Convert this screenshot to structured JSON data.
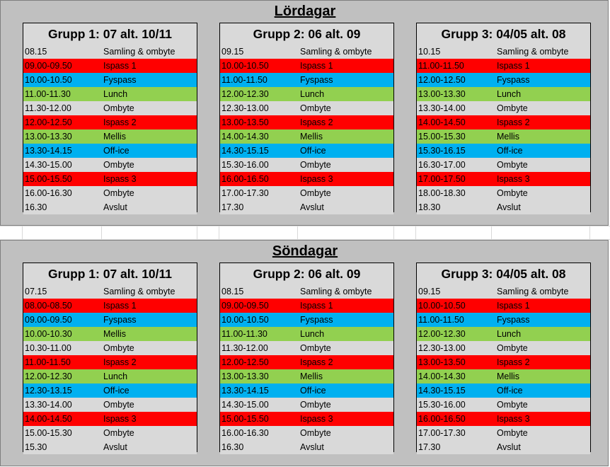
{
  "colors": {
    "ispass": "#ff0000",
    "fyspass": "#00b0f0",
    "meal": "#92d050",
    "plain": "#d9d9d9",
    "panel": "#c0c0c0"
  },
  "sections": [
    {
      "title": "Lördagar",
      "groups": [
        {
          "title": "Grupp 1: 07 alt. 10/11",
          "rows": [
            {
              "time": "08.15",
              "activity": "Samling & ombyte",
              "kind": "plain"
            },
            {
              "time": "09.00-09.50",
              "activity": "Ispass 1",
              "kind": "ice"
            },
            {
              "time": "10.00-10.50",
              "activity": "Fyspass",
              "kind": "fys"
            },
            {
              "time": "11.00-11.30",
              "activity": "Lunch",
              "kind": "food"
            },
            {
              "time": "11.30-12.00",
              "activity": "Ombyte",
              "kind": "plain"
            },
            {
              "time": "12.00-12.50",
              "activity": "Ispass 2",
              "kind": "ice"
            },
            {
              "time": "13.00-13.30",
              "activity": "Mellis",
              "kind": "food"
            },
            {
              "time": "13.30-14.15",
              "activity": "Off-ice",
              "kind": "fys"
            },
            {
              "time": "14.30-15.00",
              "activity": "Ombyte",
              "kind": "plain"
            },
            {
              "time": "15.00-15.50",
              "activity": "Ispass 3",
              "kind": "ice"
            },
            {
              "time": "16.00-16.30",
              "activity": "Ombyte",
              "kind": "plain"
            },
            {
              "time": "16.30",
              "activity": "Avslut",
              "kind": "plain"
            }
          ]
        },
        {
          "title": "Grupp 2: 06 alt. 09",
          "rows": [
            {
              "time": "09.15",
              "activity": "Samling & ombyte",
              "kind": "plain"
            },
            {
              "time": "10.00-10.50",
              "activity": "Ispass 1",
              "kind": "ice"
            },
            {
              "time": "11.00-11.50",
              "activity": "Fyspass",
              "kind": "fys"
            },
            {
              "time": "12.00-12.30",
              "activity": "Lunch",
              "kind": "food"
            },
            {
              "time": "12.30-13.00",
              "activity": "Ombyte",
              "kind": "plain"
            },
            {
              "time": "13.00-13.50",
              "activity": "Ispass 2",
              "kind": "ice"
            },
            {
              "time": "14.00-14.30",
              "activity": "Mellis",
              "kind": "food"
            },
            {
              "time": "14.30-15.15",
              "activity": "Off-ice",
              "kind": "fys"
            },
            {
              "time": "15.30-16.00",
              "activity": "Ombyte",
              "kind": "plain"
            },
            {
              "time": "16.00-16.50",
              "activity": "Ispass 3",
              "kind": "ice"
            },
            {
              "time": "17.00-17.30",
              "activity": "Ombyte",
              "kind": "plain"
            },
            {
              "time": "17.30",
              "activity": "Avslut",
              "kind": "plain"
            }
          ]
        },
        {
          "title": "Grupp 3: 04/05 alt. 08",
          "rows": [
            {
              "time": "10.15",
              "activity": "Samling & ombyte",
              "kind": "plain"
            },
            {
              "time": "11.00-11.50",
              "activity": "Ispass 1",
              "kind": "ice"
            },
            {
              "time": "12.00-12.50",
              "activity": "Fyspass",
              "kind": "fys"
            },
            {
              "time": "13.00-13.30",
              "activity": "Lunch",
              "kind": "food"
            },
            {
              "time": "13.30-14.00",
              "activity": "Ombyte",
              "kind": "plain"
            },
            {
              "time": "14.00-14.50",
              "activity": "Ispass 2",
              "kind": "ice"
            },
            {
              "time": "15.00-15.30",
              "activity": "Mellis",
              "kind": "food"
            },
            {
              "time": "15.30-16.15",
              "activity": "Off-ice",
              "kind": "fys"
            },
            {
              "time": "16.30-17.00",
              "activity": "Ombyte",
              "kind": "plain"
            },
            {
              "time": "17.00-17.50",
              "activity": "Ispass 3",
              "kind": "ice"
            },
            {
              "time": "18.00-18.30",
              "activity": "Ombyte",
              "kind": "plain"
            },
            {
              "time": "18.30",
              "activity": "Avslut",
              "kind": "plain"
            }
          ]
        }
      ]
    },
    {
      "title": "Söndagar",
      "groups": [
        {
          "title": "Grupp 1: 07 alt. 10/11",
          "rows": [
            {
              "time": "07.15",
              "activity": "Samling & ombyte",
              "kind": "plain"
            },
            {
              "time": "08.00-08.50",
              "activity": "Ispass 1",
              "kind": "ice"
            },
            {
              "time": "09.00-09.50",
              "activity": "Fyspass",
              "kind": "fys"
            },
            {
              "time": "10.00-10.30",
              "activity": "Mellis",
              "kind": "food"
            },
            {
              "time": "10.30-11.00",
              "activity": "Ombyte",
              "kind": "plain"
            },
            {
              "time": "11.00-11.50",
              "activity": "Ispass 2",
              "kind": "ice"
            },
            {
              "time": "12.00-12.30",
              "activity": "Lunch",
              "kind": "food"
            },
            {
              "time": "12.30-13.15",
              "activity": "Off-ice",
              "kind": "fys"
            },
            {
              "time": "13.30-14.00",
              "activity": "Ombyte",
              "kind": "plain"
            },
            {
              "time": "14.00-14.50",
              "activity": "Ispass 3",
              "kind": "ice"
            },
            {
              "time": "15.00-15.30",
              "activity": "Ombyte",
              "kind": "plain"
            },
            {
              "time": "15.30",
              "activity": "Avslut",
              "kind": "plain"
            }
          ]
        },
        {
          "title": "Grupp 2: 06 alt. 09",
          "rows": [
            {
              "time": "08.15",
              "activity": "Samling & ombyte",
              "kind": "plain"
            },
            {
              "time": "09.00-09.50",
              "activity": "Ispass 1",
              "kind": "ice"
            },
            {
              "time": "10.00-10.50",
              "activity": "Fyspass",
              "kind": "fys"
            },
            {
              "time": "11.00-11.30",
              "activity": "Lunch",
              "kind": "food"
            },
            {
              "time": "11.30-12.00",
              "activity": "Ombyte",
              "kind": "plain"
            },
            {
              "time": "12.00-12.50",
              "activity": "Ispass 2",
              "kind": "ice"
            },
            {
              "time": "13.00-13.30",
              "activity": "Mellis",
              "kind": "food"
            },
            {
              "time": "13.30-14.15",
              "activity": "Off-ice",
              "kind": "fys"
            },
            {
              "time": "14.30-15.00",
              "activity": "Ombyte",
              "kind": "plain"
            },
            {
              "time": "15.00-15.50",
              "activity": "Ispass 3",
              "kind": "ice"
            },
            {
              "time": "16.00-16.30",
              "activity": "Ombyte",
              "kind": "plain"
            },
            {
              "time": "16.30",
              "activity": "Avslut",
              "kind": "plain"
            }
          ]
        },
        {
          "title": "Grupp 3: 04/05 alt. 08",
          "rows": [
            {
              "time": "09.15",
              "activity": "Samling & ombyte",
              "kind": "plain"
            },
            {
              "time": "10.00-10.50",
              "activity": "Ispass 1",
              "kind": "ice"
            },
            {
              "time": "11.00-11.50",
              "activity": "Fyspass",
              "kind": "fys"
            },
            {
              "time": "12.00-12.30",
              "activity": "Lunch",
              "kind": "food"
            },
            {
              "time": "12.30-13.00",
              "activity": "Ombyte",
              "kind": "plain"
            },
            {
              "time": "13.00-13.50",
              "activity": "Ispass 2",
              "kind": "ice"
            },
            {
              "time": "14.00-14.30",
              "activity": "Mellis",
              "kind": "food"
            },
            {
              "time": "14.30-15.15",
              "activity": "Off-ice",
              "kind": "fys"
            },
            {
              "time": "15.30-16.00",
              "activity": "Ombyte",
              "kind": "plain"
            },
            {
              "time": "16.00-16.50",
              "activity": "Ispass 3",
              "kind": "ice"
            },
            {
              "time": "17.00-17.30",
              "activity": "Ombyte",
              "kind": "plain"
            },
            {
              "time": "17.30",
              "activity": "Avslut",
              "kind": "plain"
            }
          ]
        }
      ]
    }
  ]
}
